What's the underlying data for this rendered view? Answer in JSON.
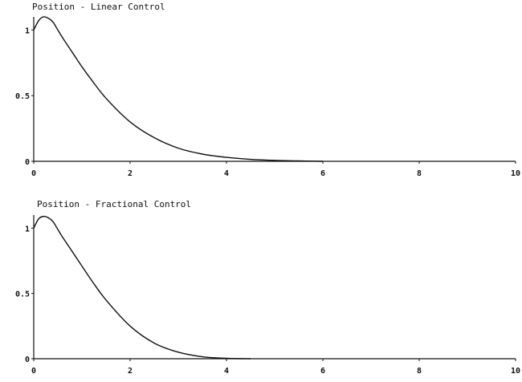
{
  "chart_data": [
    {
      "type": "line",
      "title": "Position -  Linear Control",
      "xlabel": "",
      "ylabel": "",
      "xlim": [
        0,
        10
      ],
      "ylim": [
        0,
        1.1
      ],
      "xticks": [
        "0",
        "2",
        "4",
        "6",
        "8",
        "10"
      ],
      "yticks": [
        "0",
        "0.5",
        "1"
      ],
      "grid": false,
      "series": [
        {
          "x": [
            0,
            0.1,
            0.2,
            0.3,
            0.4,
            0.5,
            0.6,
            0.8,
            1.0,
            1.2,
            1.5,
            2.0,
            2.5,
            3.0,
            3.5,
            4.0,
            4.5,
            5.0,
            5.5,
            6.0
          ],
          "values": [
            1.0,
            1.07,
            1.1,
            1.09,
            1.06,
            1.0,
            0.94,
            0.83,
            0.72,
            0.62,
            0.48,
            0.3,
            0.18,
            0.1,
            0.055,
            0.03,
            0.015,
            0.007,
            0.003,
            0.0
          ]
        }
      ]
    },
    {
      "type": "line",
      "title": "Position - Fractional Control",
      "xlabel": "",
      "ylabel": "",
      "xlim": [
        0,
        10
      ],
      "ylim": [
        0,
        1.1
      ],
      "xticks": [
        "0",
        "2",
        "4",
        "6",
        "8",
        "10"
      ],
      "yticks": [
        "0",
        "0.5",
        "1"
      ],
      "grid": false,
      "series": [
        {
          "x": [
            0,
            0.1,
            0.2,
            0.3,
            0.4,
            0.5,
            0.6,
            0.8,
            1.0,
            1.2,
            1.5,
            2.0,
            2.5,
            3.0,
            3.5,
            4.0,
            4.5
          ],
          "values": [
            1.0,
            1.07,
            1.09,
            1.08,
            1.05,
            0.99,
            0.93,
            0.82,
            0.71,
            0.6,
            0.45,
            0.25,
            0.12,
            0.05,
            0.015,
            0.003,
            0.0
          ]
        }
      ]
    }
  ]
}
